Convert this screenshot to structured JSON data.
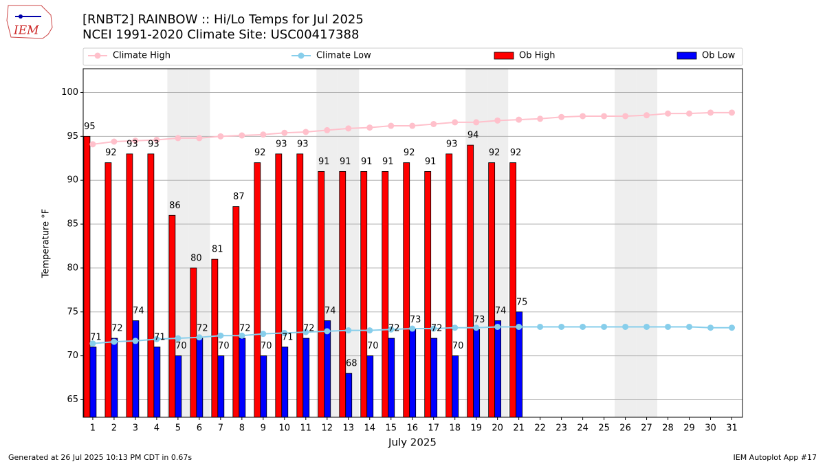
{
  "chart_data": {
    "type": "bar",
    "title": "[RNBT2] RAINBOW :: Hi/Lo Temps for Jul 2025",
    "subtitle": "NCEI 1991-2020 Climate Site: USC00417388",
    "xlabel": "July 2025",
    "ylabel": "Temperature °F",
    "logo": "IEM",
    "footer_left": "Generated at 26 Jul 2025 10:13 PM CDT in 0.67s",
    "footer_right": "IEM Autoplot App #17",
    "x": [
      1,
      2,
      3,
      4,
      5,
      6,
      7,
      8,
      9,
      10,
      11,
      12,
      13,
      14,
      15,
      16,
      17,
      18,
      19,
      20,
      21,
      22,
      23,
      24,
      25,
      26,
      27,
      28,
      29,
      30,
      31
    ],
    "xlim": [
      0.55,
      31.5
    ],
    "xticks": [
      1,
      2,
      3,
      4,
      5,
      6,
      7,
      8,
      9,
      10,
      11,
      12,
      13,
      14,
      15,
      16,
      17,
      18,
      19,
      20,
      21,
      22,
      23,
      24,
      25,
      26,
      27,
      28,
      29,
      30,
      31
    ],
    "ylim": [
      63,
      102.7
    ],
    "yticks": [
      65,
      70,
      75,
      80,
      85,
      90,
      95,
      100
    ],
    "grid": true,
    "highlight_days": [
      5,
      6,
      12,
      13,
      19,
      20,
      26,
      27
    ],
    "highlight_color": "#eeeeee",
    "series": [
      {
        "name": "Climate High",
        "kind": "line",
        "color": "#ffc0cb",
        "values": [
          94.1,
          94.4,
          94.5,
          94.6,
          94.8,
          94.8,
          95.0,
          95.1,
          95.2,
          95.4,
          95.5,
          95.7,
          95.9,
          96.0,
          96.2,
          96.2,
          96.4,
          96.6,
          96.6,
          96.8,
          96.9,
          97.0,
          97.2,
          97.3,
          97.3,
          97.3,
          97.4,
          97.6,
          97.6,
          97.7,
          97.7
        ]
      },
      {
        "name": "Climate Low",
        "kind": "line",
        "color": "#87ceeb",
        "values": [
          71.4,
          71.6,
          71.7,
          71.9,
          72.0,
          72.1,
          72.3,
          72.3,
          72.5,
          72.6,
          72.7,
          72.8,
          72.9,
          72.9,
          73.0,
          73.1,
          73.1,
          73.2,
          73.2,
          73.3,
          73.3,
          73.3,
          73.3,
          73.3,
          73.3,
          73.3,
          73.3,
          73.3,
          73.3,
          73.2,
          73.2
        ]
      },
      {
        "name": "Ob High",
        "kind": "bar",
        "color": "#ff0000",
        "values": [
          95,
          92,
          93,
          93,
          86,
          80,
          81,
          87,
          92,
          93,
          93,
          91,
          91,
          91,
          91,
          92,
          91,
          93,
          94,
          92,
          92,
          null,
          null,
          null,
          null,
          null,
          null,
          null,
          null,
          null,
          null
        ]
      },
      {
        "name": "Ob Low",
        "kind": "bar",
        "color": "#0000ff",
        "values": [
          71,
          72,
          74,
          71,
          70,
          72,
          70,
          72,
          70,
          71,
          72,
          74,
          68,
          70,
          72,
          73,
          72,
          70,
          73,
          74,
          75,
          null,
          null,
          null,
          null,
          null,
          null,
          null,
          null,
          null,
          null
        ]
      }
    ]
  }
}
